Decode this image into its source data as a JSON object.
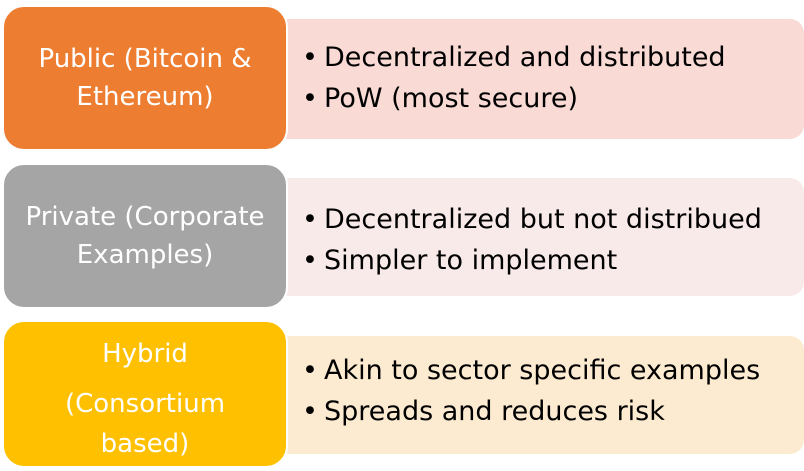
{
  "rows": [
    {
      "label_lines": [
        "Public (Bitcoin &",
        "Ethereum)"
      ],
      "bullets": [
        "Decentralized and distributed",
        "PoW (most secure)"
      ],
      "box_color": "#ed7d31",
      "panel_color": "#f9dad5"
    },
    {
      "label_lines": [
        "Private (Corporate",
        "Examples)"
      ],
      "bullets": [
        "Decentralized but not distribued",
        "Simpler to implement"
      ],
      "box_color": "#a5a5a5",
      "panel_color": "#f8eae8"
    },
    {
      "label_lines": [
        "Hybrid",
        "(Consortium",
        "based)"
      ],
      "bullets": [
        "Akin to sector specific examples",
        "Spreads and reduces risk"
      ],
      "box_color": "#ffc000",
      "panel_color": "#fdebd1"
    }
  ],
  "bullet_glyph": "•"
}
